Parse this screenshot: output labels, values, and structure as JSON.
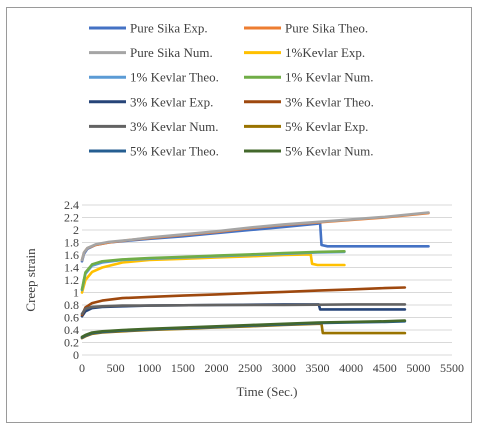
{
  "chart_data": {
    "type": "line",
    "title": "",
    "xlabel": "Time (Sec.)",
    "ylabel": "Creep strain",
    "xlim": [
      0,
      5500
    ],
    "ylim": [
      0,
      2.4
    ],
    "x_ticks": [
      0,
      500,
      1000,
      1500,
      2000,
      2500,
      3000,
      3500,
      4000,
      4500,
      5000,
      5500
    ],
    "y_ticks": [
      0,
      0.2,
      0.4,
      0.6,
      0.8,
      1,
      1.2,
      1.4,
      1.6,
      1.8,
      2,
      2.2,
      2.4
    ],
    "grid": "horizontal",
    "legend_position": "top",
    "series": [
      {
        "name": "Pure Sika Exp.",
        "color": "#4472C4",
        "points": [
          [
            0,
            1.5
          ],
          [
            30,
            1.62
          ],
          [
            80,
            1.7
          ],
          [
            200,
            1.76
          ],
          [
            400,
            1.8
          ],
          [
            700,
            1.83
          ],
          [
            1000,
            1.86
          ],
          [
            1500,
            1.9
          ],
          [
            2000,
            1.95
          ],
          [
            2500,
            2.0
          ],
          [
            3000,
            2.05
          ],
          [
            3500,
            2.1
          ],
          [
            3540,
            2.11
          ],
          [
            3560,
            1.76
          ],
          [
            3650,
            1.74
          ],
          [
            4000,
            1.74
          ],
          [
            4500,
            1.74
          ],
          [
            5150,
            1.74
          ]
        ]
      },
      {
        "name": "Pure Sika Theo.",
        "color": "#ED7D31",
        "points": [
          [
            0,
            1.52
          ],
          [
            30,
            1.64
          ],
          [
            80,
            1.71
          ],
          [
            200,
            1.76
          ],
          [
            400,
            1.8
          ],
          [
            700,
            1.84
          ],
          [
            1000,
            1.87
          ],
          [
            1500,
            1.92
          ],
          [
            2000,
            1.97
          ],
          [
            2500,
            2.03
          ],
          [
            3000,
            2.08
          ],
          [
            3500,
            2.12
          ],
          [
            4000,
            2.16
          ],
          [
            4500,
            2.2
          ],
          [
            5150,
            2.27
          ]
        ]
      },
      {
        "name": "Pure Sika Num.",
        "color": "#A5A5A5",
        "points": [
          [
            0,
            1.52
          ],
          [
            30,
            1.64
          ],
          [
            80,
            1.71
          ],
          [
            200,
            1.77
          ],
          [
            400,
            1.81
          ],
          [
            700,
            1.84
          ],
          [
            1000,
            1.88
          ],
          [
            1500,
            1.93
          ],
          [
            2000,
            1.98
          ],
          [
            2500,
            2.04
          ],
          [
            3000,
            2.09
          ],
          [
            3500,
            2.13
          ],
          [
            4000,
            2.17
          ],
          [
            4500,
            2.21
          ],
          [
            5150,
            2.28
          ]
        ]
      },
      {
        "name": "1%Kevlar Exp.",
        "color": "#FFC000",
        "points": [
          [
            0,
            1.0
          ],
          [
            50,
            1.2
          ],
          [
            150,
            1.33
          ],
          [
            300,
            1.4
          ],
          [
            600,
            1.48
          ],
          [
            1000,
            1.52
          ],
          [
            1500,
            1.54
          ],
          [
            2000,
            1.56
          ],
          [
            2500,
            1.58
          ],
          [
            3000,
            1.6
          ],
          [
            3400,
            1.61
          ],
          [
            3420,
            1.46
          ],
          [
            3500,
            1.44
          ],
          [
            3900,
            1.44
          ]
        ]
      },
      {
        "name": "1% Kevlar Theo.",
        "color": "#5B9BD5",
        "points": [
          [
            0,
            1.04
          ],
          [
            50,
            1.3
          ],
          [
            150,
            1.43
          ],
          [
            300,
            1.48
          ],
          [
            600,
            1.52
          ],
          [
            1000,
            1.54
          ],
          [
            1500,
            1.56
          ],
          [
            2000,
            1.58
          ],
          [
            2500,
            1.6
          ],
          [
            3000,
            1.62
          ],
          [
            3500,
            1.64
          ],
          [
            3900,
            1.65
          ]
        ]
      },
      {
        "name": "1% Kevlar Num.",
        "color": "#70AD47",
        "points": [
          [
            0,
            1.05
          ],
          [
            50,
            1.32
          ],
          [
            150,
            1.45
          ],
          [
            300,
            1.5
          ],
          [
            600,
            1.53
          ],
          [
            1000,
            1.55
          ],
          [
            1500,
            1.57
          ],
          [
            2000,
            1.59
          ],
          [
            2500,
            1.61
          ],
          [
            3000,
            1.63
          ],
          [
            3500,
            1.65
          ],
          [
            3900,
            1.66
          ]
        ]
      },
      {
        "name": "3% Kevlar Exp.",
        "color": "#264478",
        "points": [
          [
            0,
            0.62
          ],
          [
            50,
            0.7
          ],
          [
            150,
            0.75
          ],
          [
            300,
            0.77
          ],
          [
            600,
            0.78
          ],
          [
            1000,
            0.79
          ],
          [
            2000,
            0.8
          ],
          [
            3000,
            0.81
          ],
          [
            3520,
            0.81
          ],
          [
            3540,
            0.73
          ],
          [
            3600,
            0.73
          ],
          [
            4000,
            0.73
          ],
          [
            4500,
            0.73
          ],
          [
            4800,
            0.73
          ]
        ]
      },
      {
        "name": "3% Kevlar Theo.",
        "color": "#9E480E",
        "points": [
          [
            0,
            0.64
          ],
          [
            50,
            0.76
          ],
          [
            150,
            0.83
          ],
          [
            300,
            0.87
          ],
          [
            600,
            0.91
          ],
          [
            1000,
            0.93
          ],
          [
            1500,
            0.95
          ],
          [
            2000,
            0.97
          ],
          [
            2500,
            0.99
          ],
          [
            3000,
            1.01
          ],
          [
            3500,
            1.03
          ],
          [
            4000,
            1.05
          ],
          [
            4500,
            1.07
          ],
          [
            4800,
            1.08
          ]
        ]
      },
      {
        "name": "3% Kevlar Num.",
        "color": "#636363",
        "points": [
          [
            0,
            0.66
          ],
          [
            50,
            0.74
          ],
          [
            150,
            0.77
          ],
          [
            300,
            0.78
          ],
          [
            600,
            0.79
          ],
          [
            1000,
            0.79
          ],
          [
            2000,
            0.8
          ],
          [
            3000,
            0.8
          ],
          [
            4000,
            0.81
          ],
          [
            4800,
            0.81
          ]
        ]
      },
      {
        "name": "5% Kevlar Exp.",
        "color": "#997300",
        "points": [
          [
            0,
            0.27
          ],
          [
            50,
            0.3
          ],
          [
            150,
            0.34
          ],
          [
            300,
            0.36
          ],
          [
            600,
            0.38
          ],
          [
            1000,
            0.4
          ],
          [
            1500,
            0.42
          ],
          [
            2000,
            0.44
          ],
          [
            2500,
            0.46
          ],
          [
            3000,
            0.48
          ],
          [
            3500,
            0.5
          ],
          [
            3560,
            0.5
          ],
          [
            3580,
            0.35
          ],
          [
            3700,
            0.35
          ],
          [
            4000,
            0.35
          ],
          [
            4500,
            0.35
          ],
          [
            4800,
            0.35
          ]
        ]
      },
      {
        "name": "5% Kevlar Theo.",
        "color": "#255E91",
        "points": [
          [
            0,
            0.28
          ],
          [
            50,
            0.31
          ],
          [
            150,
            0.35
          ],
          [
            300,
            0.37
          ],
          [
            600,
            0.39
          ],
          [
            1000,
            0.41
          ],
          [
            1500,
            0.43
          ],
          [
            2000,
            0.45
          ],
          [
            2500,
            0.47
          ],
          [
            3000,
            0.49
          ],
          [
            3500,
            0.51
          ],
          [
            4000,
            0.52
          ],
          [
            4500,
            0.53
          ],
          [
            4800,
            0.54
          ]
        ]
      },
      {
        "name": "5% Kevlar Num.",
        "color": "#43682B",
        "points": [
          [
            0,
            0.29
          ],
          [
            50,
            0.32
          ],
          [
            150,
            0.36
          ],
          [
            300,
            0.38
          ],
          [
            600,
            0.4
          ],
          [
            1000,
            0.42
          ],
          [
            1500,
            0.44
          ],
          [
            2000,
            0.46
          ],
          [
            2500,
            0.48
          ],
          [
            3000,
            0.5
          ],
          [
            3500,
            0.52
          ],
          [
            4000,
            0.53
          ],
          [
            4500,
            0.54
          ],
          [
            4800,
            0.55
          ]
        ]
      }
    ]
  }
}
